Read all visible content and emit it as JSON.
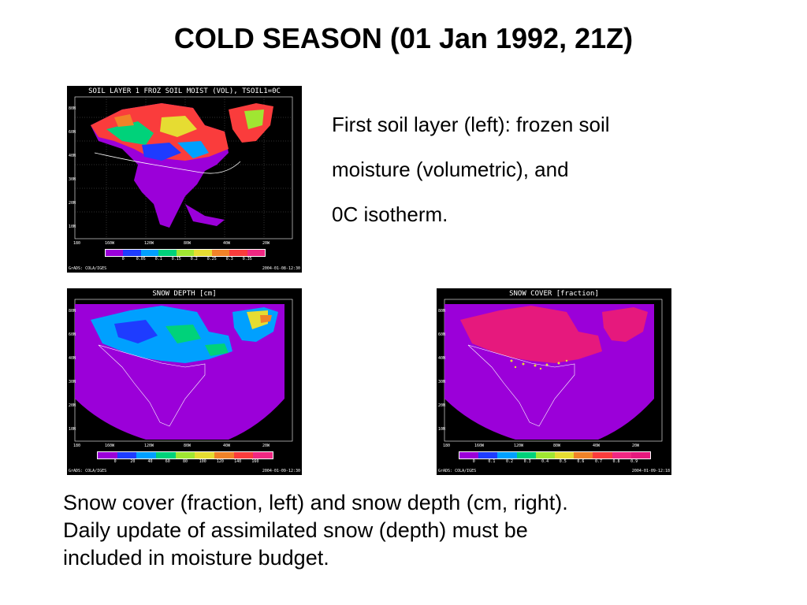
{
  "title": "COLD SEASON (01 Jan 1992, 21Z)",
  "description": {
    "line1": "First soil layer (left):  frozen soil",
    "line2": "moisture (volumetric), and",
    "line3": "0C isotherm."
  },
  "caption": {
    "line1": "Snow cover (fraction, left) and snow depth (cm, right).",
    "line2": "Daily update of assimilated snow (depth) must be",
    "line3": "included in moisture budget."
  },
  "maps": {
    "soil": {
      "title": "SOIL LAYER 1 FROZ SOIL MOIST (VOL), TSOIL1=0C",
      "ticks": [
        "0",
        "0.05",
        "0.1",
        "0.15",
        "0.2",
        "0.25",
        "0.3",
        "0.35"
      ],
      "stamp_left": "GrADS: COLA/IGES",
      "stamp_right": "2004-01-08-12:30"
    },
    "depth": {
      "title": "SNOW DEPTH [cm]",
      "ticks": [
        "0",
        "20",
        "40",
        "60",
        "80",
        "100",
        "120",
        "140",
        "160"
      ],
      "stamp_left": "GrADS: COLA/IGES",
      "stamp_right": "2004-01-09-12:30"
    },
    "cover": {
      "title": "SNOW COVER [fraction]",
      "ticks": [
        "0",
        "0.1",
        "0.2",
        "0.3",
        "0.4",
        "0.5",
        "0.6",
        "0.7",
        "0.8",
        "0.9"
      ],
      "stamp_left": "GrADS: COLA/IGES",
      "stamp_right": "2004-01-09-12:18"
    }
  },
  "colors": {
    "soil_scale": [
      "#9b00d9",
      "#1e3cff",
      "#00a0ff",
      "#00d27a",
      "#a0e632",
      "#e6dc32",
      "#f08228",
      "#fa3c3c",
      "#f02882"
    ],
    "depth_scale": [
      "#9b00d9",
      "#1e3cff",
      "#00a0ff",
      "#00d27a",
      "#a0e632",
      "#e6dc32",
      "#f08228",
      "#fa3c3c",
      "#f02882"
    ],
    "cover_scale": [
      "#9b00d9",
      "#1e3cff",
      "#00a0ff",
      "#00d27a",
      "#a0e632",
      "#e6dc32",
      "#f08228",
      "#fa3c3c",
      "#f02882",
      "#e6197d"
    ]
  }
}
